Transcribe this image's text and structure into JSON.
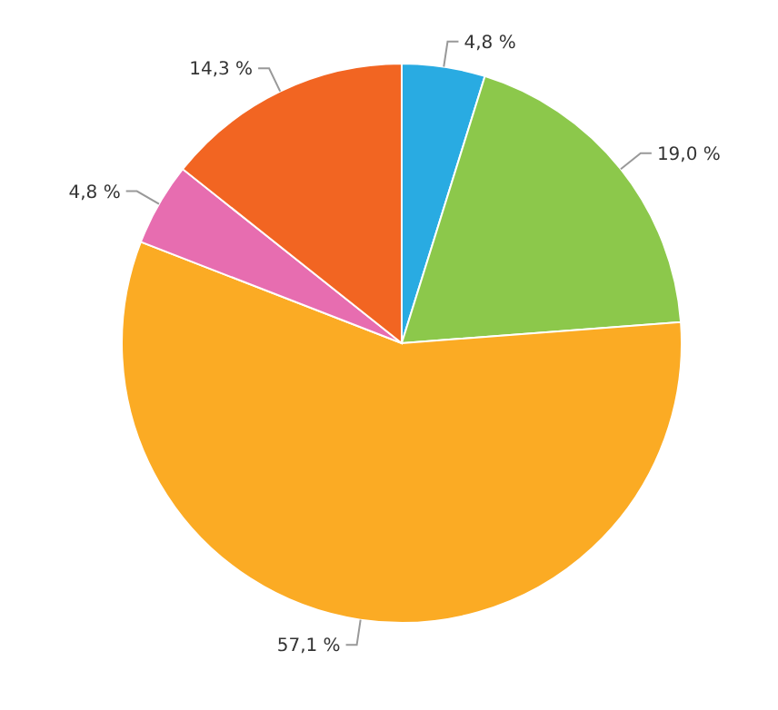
{
  "chart_data": {
    "type": "pie",
    "categories": [
      null,
      null,
      null,
      null,
      null
    ],
    "values": [
      4.8,
      19.0,
      57.1,
      4.8,
      14.3
    ],
    "colors": [
      "#29abe2",
      "#8cc84b",
      "#fbab24",
      "#e76db0",
      "#f26522"
    ],
    "value_labels": [
      "4,8 %",
      "19,0 %",
      "57,1 %",
      "4,8 %",
      "14,3 %"
    ]
  }
}
